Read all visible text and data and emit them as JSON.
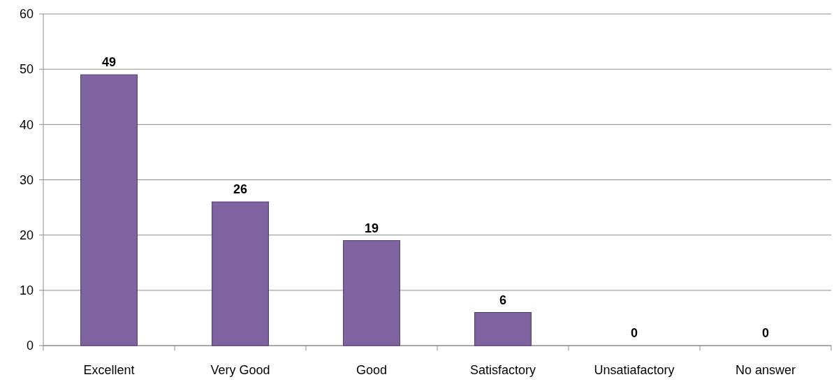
{
  "chart_data": {
    "type": "bar",
    "categories": [
      "Excellent",
      "Very Good",
      "Good",
      "Satisfactory",
      "Unsatiafactory",
      "No answer"
    ],
    "values": [
      49,
      26,
      19,
      6,
      0,
      0
    ],
    "color": "#8064a2",
    "ylim": [
      0,
      60
    ],
    "yticks": [
      0,
      10,
      20,
      30,
      40,
      50,
      60
    ],
    "grid": "y",
    "data_labels": true
  }
}
